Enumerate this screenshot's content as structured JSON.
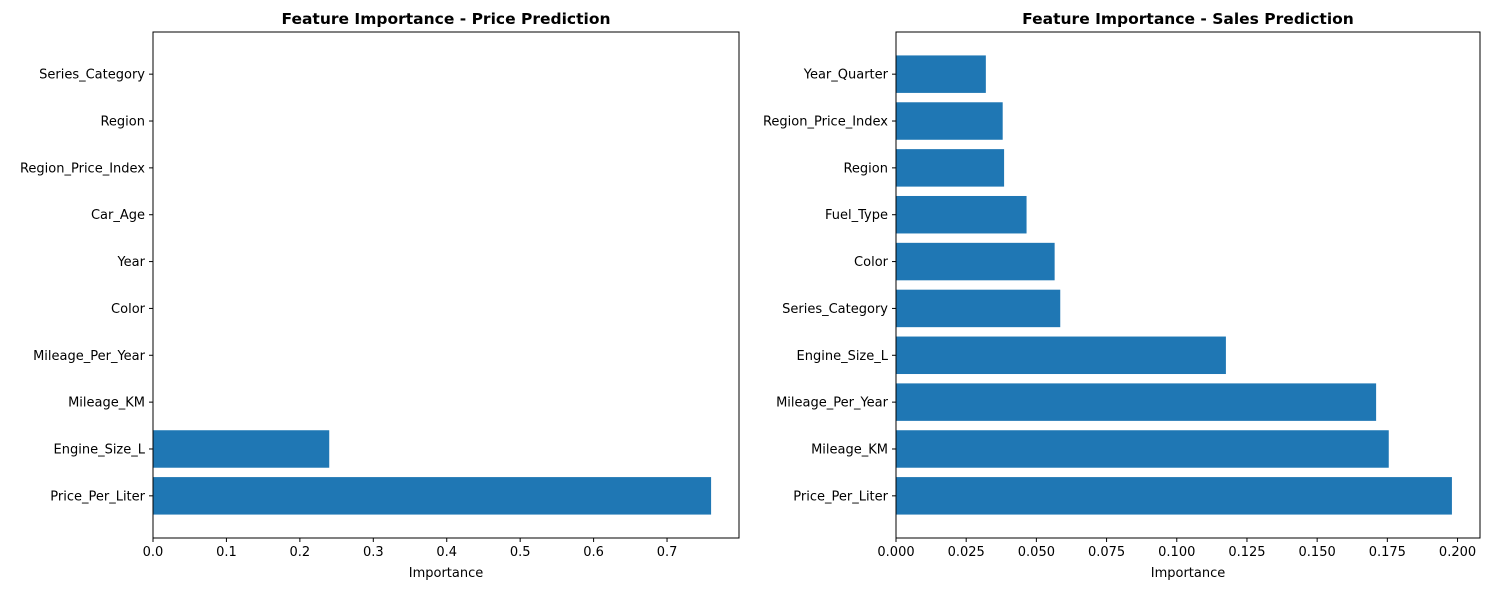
{
  "colors": {
    "bar": "#1f77b4",
    "axis": "#000000",
    "background": "#ffffff"
  },
  "chart_data": [
    {
      "type": "bar",
      "orientation": "horizontal",
      "title": "Feature Importance - Price Prediction",
      "xlabel": "Importance",
      "ylabel": "",
      "categories": [
        "Price_Per_Liter",
        "Engine_Size_L",
        "Mileage_KM",
        "Mileage_Per_Year",
        "Color",
        "Year",
        "Car_Age",
        "Region_Price_Index",
        "Region",
        "Series_Category"
      ],
      "values": [
        0.76,
        0.24,
        0,
        0,
        0,
        0,
        0,
        0,
        0,
        0
      ],
      "xlim": [
        0,
        0.798
      ],
      "xticks": [
        0,
        0.1,
        0.2,
        0.3,
        0.4,
        0.5,
        0.6,
        0.7
      ],
      "xtick_labels": [
        "0.0",
        "0.1",
        "0.2",
        "0.3",
        "0.4",
        "0.5",
        "0.6",
        "0.7"
      ],
      "grid": false,
      "legend": "none"
    },
    {
      "type": "bar",
      "orientation": "horizontal",
      "title": "Feature Importance - Sales Prediction",
      "xlabel": "Importance",
      "ylabel": "",
      "categories": [
        "Price_Per_Liter",
        "Mileage_KM",
        "Mileage_Per_Year",
        "Engine_Size_L",
        "Series_Category",
        "Color",
        "Fuel_Type",
        "Region",
        "Region_Price_Index",
        "Year_Quarter"
      ],
      "values": [
        0.198,
        0.1755,
        0.171,
        0.1175,
        0.0585,
        0.0565,
        0.0465,
        0.0385,
        0.038,
        0.032
      ],
      "xlim": [
        0,
        0.208
      ],
      "xticks": [
        0,
        0.025,
        0.05,
        0.075,
        0.1,
        0.125,
        0.15,
        0.175,
        0.2
      ],
      "xtick_labels": [
        "0.000",
        "0.025",
        "0.050",
        "0.075",
        "0.100",
        "0.125",
        "0.150",
        "0.175",
        "0.200"
      ],
      "grid": false,
      "legend": "none"
    }
  ]
}
